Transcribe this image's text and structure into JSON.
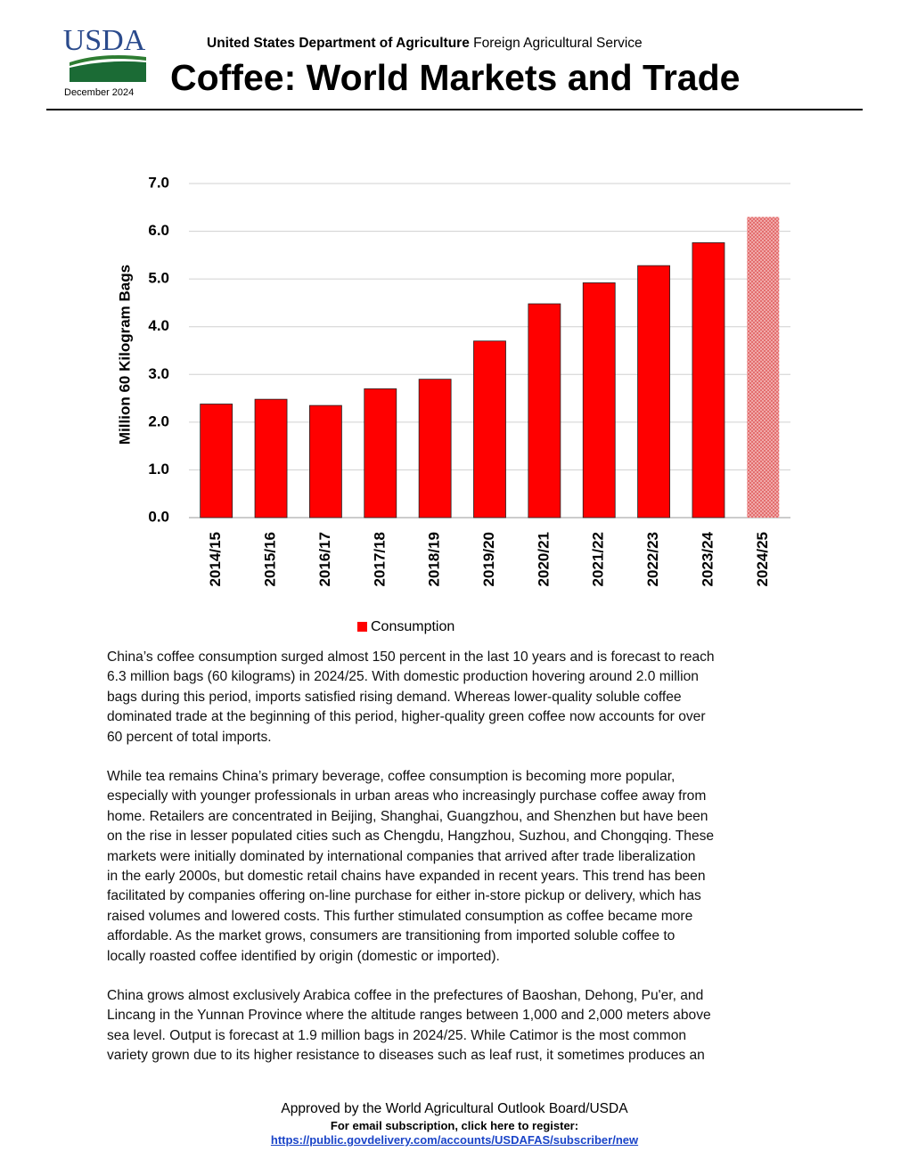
{
  "header": {
    "logo": "USDA",
    "date": "December 2024",
    "agency_bold": "United States Department of Agriculture",
    "agency_rest": "Foreign Agricultural Service",
    "title": "Coffee: World Markets and Trade"
  },
  "chart_data": {
    "type": "bar",
    "y_label": "Million 60 Kilogram Bags",
    "categories": [
      "2014/15",
      "2015/16",
      "2016/17",
      "2017/18",
      "2018/19",
      "2019/20",
      "2020/21",
      "2021/22",
      "2022/23",
      "2023/24",
      "2024/25"
    ],
    "series": [
      {
        "name": "Consumption",
        "color": "#ff0000",
        "values": [
          2.38,
          2.48,
          2.35,
          2.7,
          2.9,
          3.7,
          4.48,
          4.92,
          5.28,
          5.76,
          6.3
        ]
      }
    ],
    "ylim": [
      0,
      7
    ],
    "yticks": [
      {
        "value": 0,
        "label": "0.0"
      },
      {
        "value": 1,
        "label": "1.0"
      },
      {
        "value": 2,
        "label": "2.0"
      },
      {
        "value": 3,
        "label": "3.0"
      },
      {
        "value": 4,
        "label": "4.0"
      },
      {
        "value": 5,
        "label": "5.0"
      },
      {
        "value": 6,
        "label": "6.0"
      },
      {
        "value": 7,
        "label": "7.0"
      }
    ],
    "grid": true,
    "legend": "bottom"
  },
  "paragraphs": [
    [
      "China’s coffee consumption surged almost 150 percent in the last 10 years and is forecast to reach",
      "6.3 million bags (60 kilograms) in 2024/25. With domestic production hovering around 2.0 million",
      "bags during this period, imports satisfied rising demand. Whereas lower-quality soluble coffee",
      "dominated trade at the beginning of this period, higher-quality green coffee now accounts for over",
      "60 percent of total imports."
    ],
    [
      "While tea remains China’s primary beverage, coffee consumption is becoming more popular,",
      "especially with younger professionals in urban areas who increasingly purchase coffee away from",
      "home. Retailers are concentrated in Beijing, Shanghai, Guangzhou, and Shenzhen but have been",
      "on the rise in lesser populated cities such as Chengdu, Hangzhou, Suzhou, and Chongqing. These",
      "markets were initially dominated by international companies that arrived after trade liberalization",
      "in the early 2000s, but domestic retail chains have expanded in recent years. This trend has been",
      "facilitated by companies offering on-line purchase for either in-store pickup or delivery, which has",
      "raised volumes and lowered costs. This further stimulated consumption as coffee became more",
      "affordable. As the market grows, consumers are transitioning from imported soluble coffee to",
      "locally roasted coffee identified by origin (domestic or imported)."
    ],
    [
      "China grows almost exclusively Arabica coffee in the prefectures of Baoshan, Dehong, Pu'er, and",
      "Lincang in the Yunnan Province where the altitude ranges between 1,000 and 2,000 meters above",
      "sea level. Output is forecast at 1.9 million bags in 2024/25. While Catimor is the most common",
      "variety grown due to its higher resistance to diseases such as leaf rust, it sometimes produces an"
    ]
  ],
  "footer": {
    "approved": "Approved by the World Agricultural Outlook Board/USDA",
    "subscribe": "For email subscription, click here to register:",
    "link": "https://public.govdelivery.com/accounts/USDAFAS/subscriber/new"
  }
}
